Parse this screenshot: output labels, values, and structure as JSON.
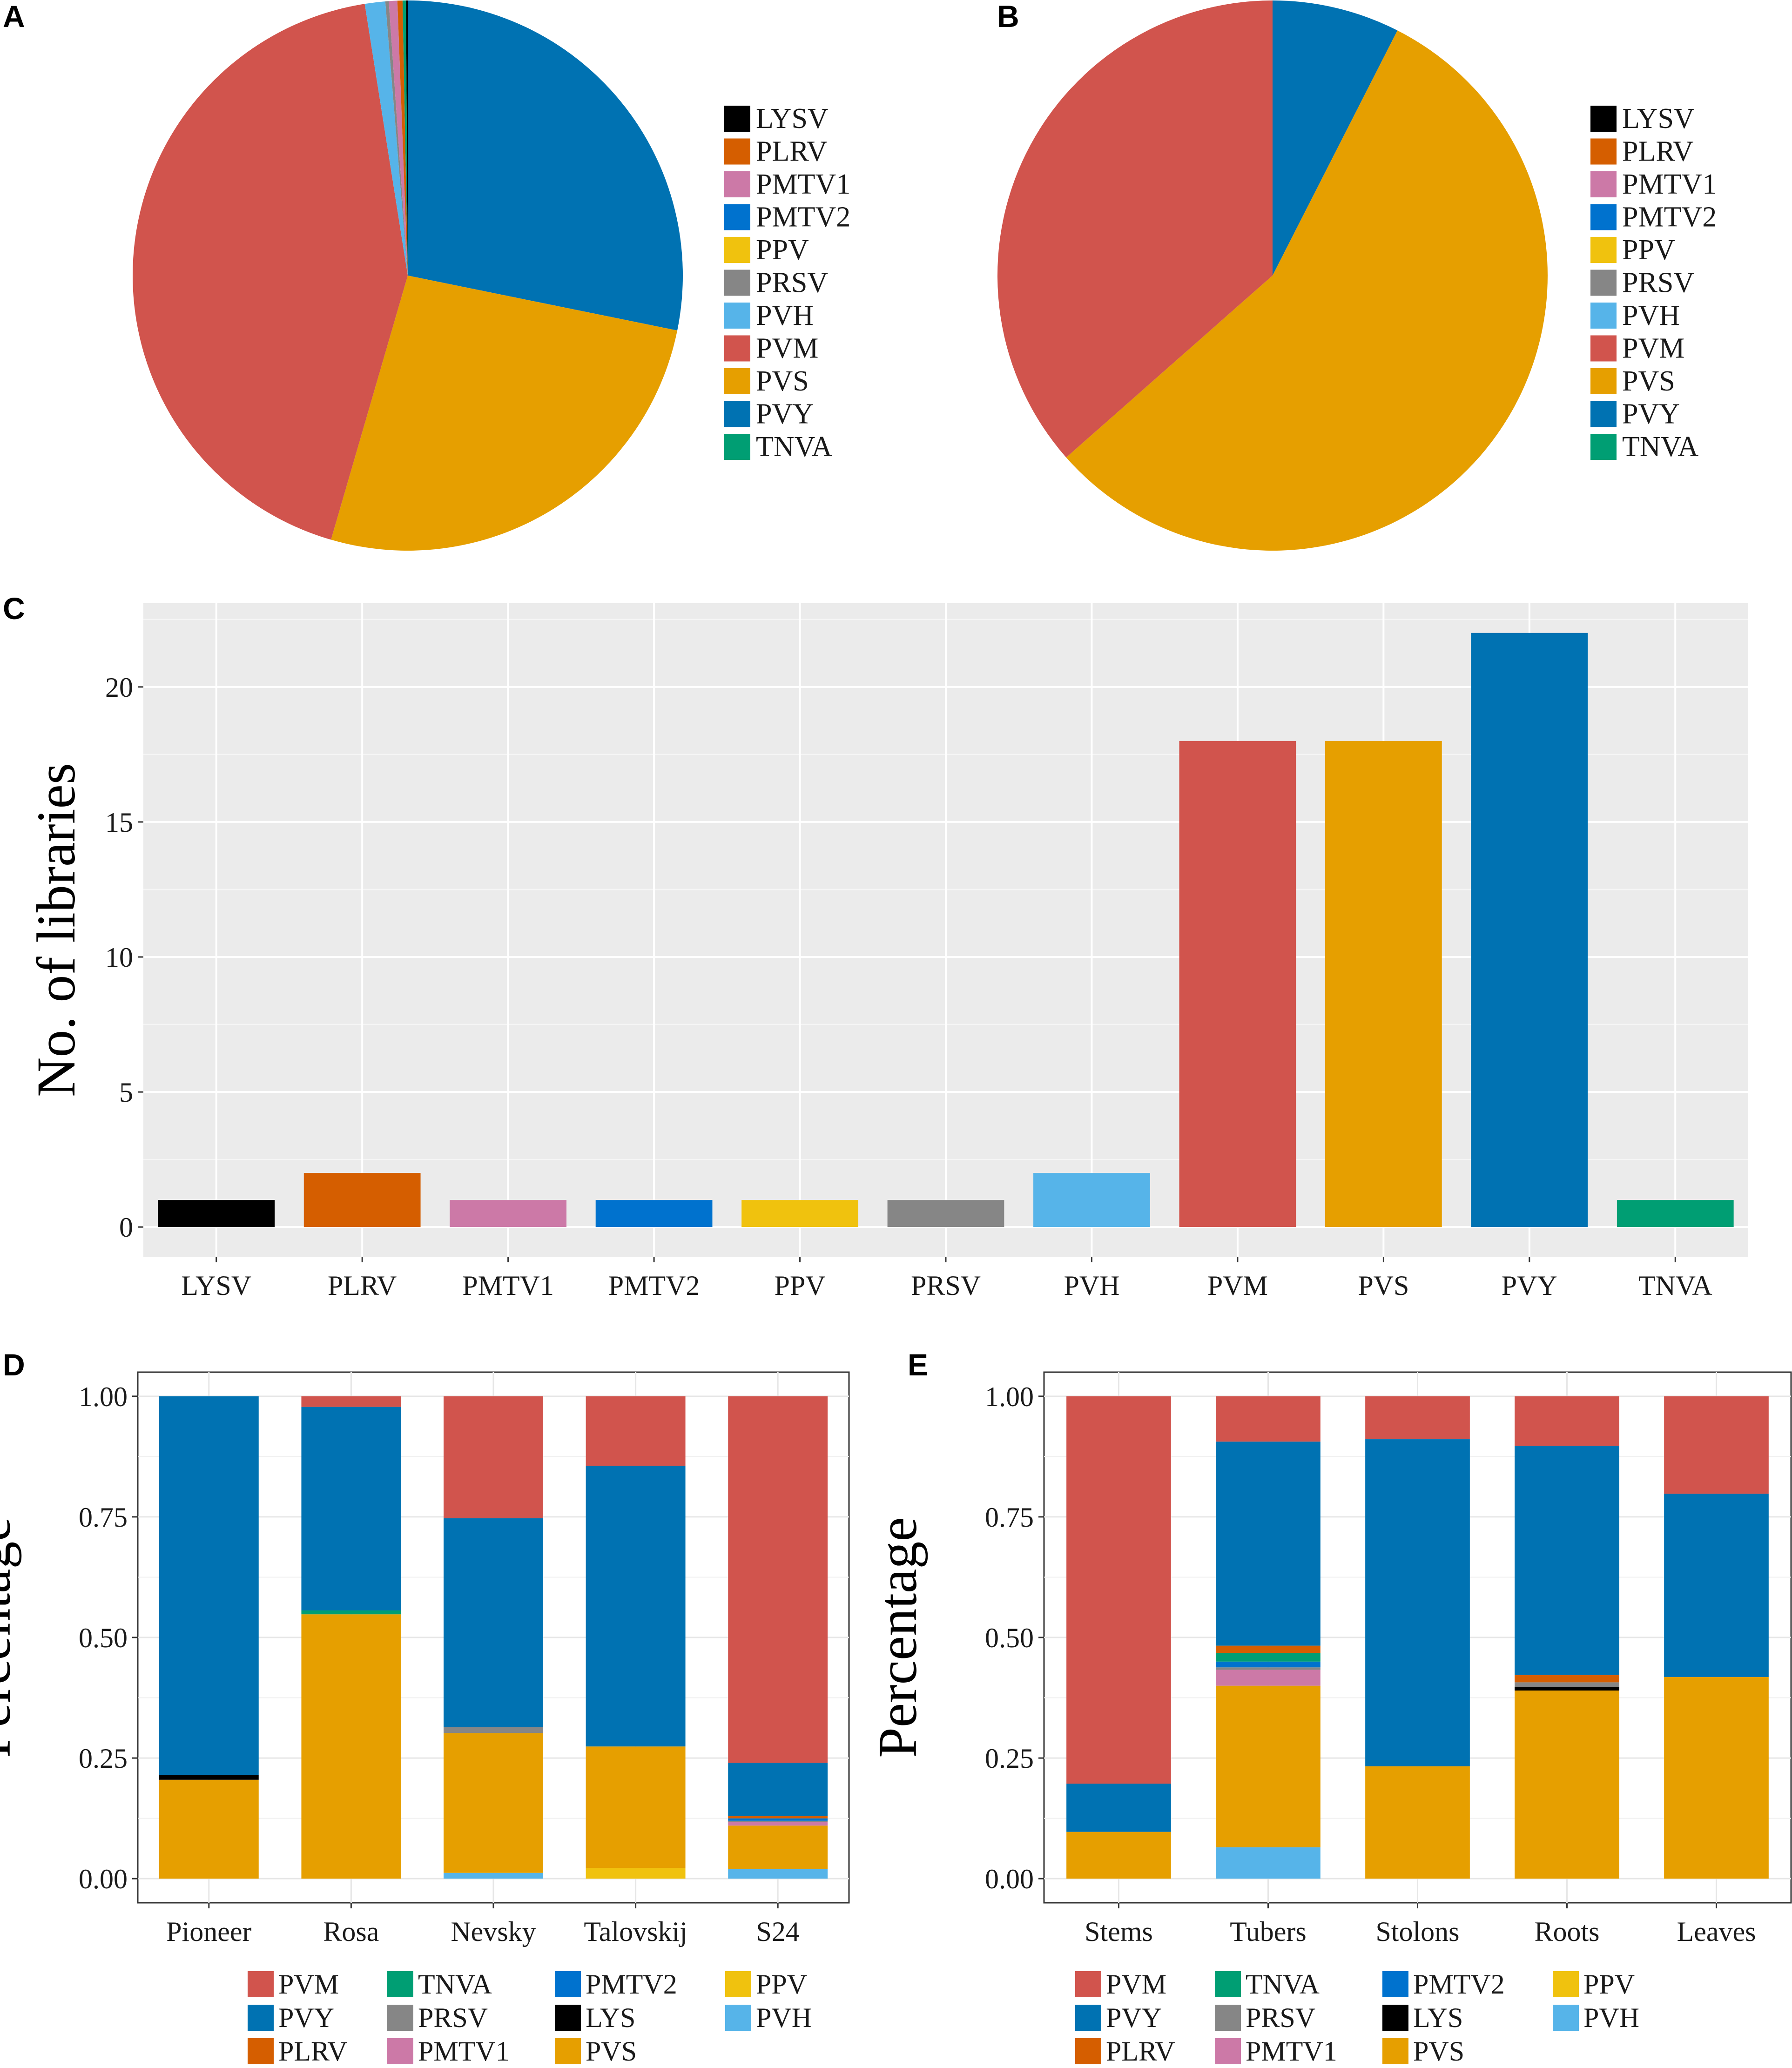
{
  "colors": {
    "LYSV": "#000000",
    "LYS": "#000000",
    "PLRV": "#D55E00",
    "PMTV1": "#CC79A7",
    "PMTV2": "#0072CE",
    "PPV": "#F0C20E",
    "PRSV": "#868686",
    "PVH": "#56B4E9",
    "PVM": "#D1544D",
    "PVS": "#E69F00",
    "PVY": "#0072B2",
    "TNVA": "#009E73"
  },
  "legend_virus_order": [
    "LYSV",
    "PLRV",
    "PMTV1",
    "PMTV2",
    "PPV",
    "PRSV",
    "PVH",
    "PVM",
    "PVS",
    "PVY",
    "TNVA"
  ],
  "chart_data": [
    {
      "panel": "A",
      "type": "pie",
      "slices": [
        {
          "label": "PVY",
          "value": 28.2
        },
        {
          "label": "PVS",
          "value": 26.3
        },
        {
          "label": "PVM",
          "value": 43.0
        },
        {
          "label": "PVH",
          "value": 1.2
        },
        {
          "label": "PRSV",
          "value": 0.2
        },
        {
          "label": "PMTV1",
          "value": 0.5
        },
        {
          "label": "PLRV",
          "value": 0.3
        },
        {
          "label": "TNVA",
          "value": 0.2
        },
        {
          "label": "LYSV",
          "value": 0.1
        }
      ],
      "legend": [
        "LYSV",
        "PLRV",
        "PMTV1",
        "PMTV2",
        "PPV",
        "PRSV",
        "PVH",
        "PVM",
        "PVS",
        "PVY",
        "TNVA"
      ]
    },
    {
      "panel": "B",
      "type": "pie",
      "slices": [
        {
          "label": "PVY",
          "value": 7.5
        },
        {
          "label": "PVS",
          "value": 56.0
        },
        {
          "label": "PVM",
          "value": 36.5
        }
      ],
      "legend": [
        "LYSV",
        "PLRV",
        "PMTV1",
        "PMTV2",
        "PPV",
        "PRSV",
        "PVH",
        "PVM",
        "PVS",
        "PVY",
        "TNVA"
      ]
    },
    {
      "panel": "C",
      "type": "bar",
      "categories": [
        "LYSV",
        "PLRV",
        "PMTV1",
        "PMTV2",
        "PPV",
        "PRSV",
        "PVH",
        "PVM",
        "PVS",
        "PVY",
        "TNVA"
      ],
      "values": [
        1,
        2,
        1,
        1,
        1,
        1,
        2,
        18,
        18,
        22,
        1
      ],
      "ylabel": "No. of libraries",
      "xlabel": "",
      "ylim": [
        -1.1,
        23.1
      ],
      "yticks": [
        0,
        5,
        10,
        15,
        20
      ],
      "ytick_labels": [
        "0",
        "5",
        "10",
        "15",
        "20"
      ]
    },
    {
      "panel": "D",
      "type": "bar",
      "stacked": true,
      "categories": [
        "Pioneer",
        "Rosa",
        "Nevsky",
        "Talovskij",
        "S24"
      ],
      "stack_order": [
        "PVH",
        "PPV",
        "PVS",
        "PMTV1",
        "LYS",
        "PRSV",
        "PMTV2",
        "TNVA",
        "PLRV",
        "PVY",
        "PVM"
      ],
      "series": [
        {
          "name": "PVH",
          "values": [
            0,
            0,
            0.012,
            0,
            0.02
          ]
        },
        {
          "name": "PPV",
          "values": [
            0,
            0,
            0,
            0.022,
            0
          ]
        },
        {
          "name": "PVS",
          "values": [
            0.205,
            0.548,
            0.29,
            0.252,
            0.09
          ]
        },
        {
          "name": "PMTV1",
          "values": [
            0,
            0,
            0,
            0,
            0.007
          ]
        },
        {
          "name": "LYS",
          "values": [
            0.01,
            0,
            0,
            0,
            0
          ]
        },
        {
          "name": "PRSV",
          "values": [
            0,
            0,
            0.012,
            0,
            0.003
          ]
        },
        {
          "name": "PMTV2",
          "values": [
            0,
            0,
            0,
            0,
            0.005
          ]
        },
        {
          "name": "TNVA",
          "values": [
            0,
            0.008,
            0,
            0,
            0
          ]
        },
        {
          "name": "PLRV",
          "values": [
            0,
            0,
            0,
            0,
            0.005
          ]
        },
        {
          "name": "PVY",
          "values": [
            0.785,
            0.422,
            0.433,
            0.582,
            0.11
          ]
        },
        {
          "name": "PVM",
          "values": [
            0,
            0.022,
            0.253,
            0.144,
            0.76
          ]
        }
      ],
      "ylabel": "Percentage",
      "ylim": [
        -0.05,
        1.05
      ],
      "yticks": [
        0,
        0.25,
        0.5,
        0.75,
        1
      ],
      "ytick_labels": [
        "0.00",
        "0.25",
        "0.50",
        "0.75",
        "1.00"
      ]
    },
    {
      "panel": "E",
      "type": "bar",
      "stacked": true,
      "categories": [
        "Stems",
        "Tubers",
        "Stolons",
        "Roots",
        "Leaves"
      ],
      "stack_order": [
        "PVH",
        "PPV",
        "PVS",
        "PMTV1",
        "LYS",
        "PRSV",
        "PMTV2",
        "TNVA",
        "PLRV",
        "PVY",
        "PVM"
      ],
      "series": [
        {
          "name": "PVH",
          "values": [
            0,
            0.065,
            0,
            0,
            0
          ]
        },
        {
          "name": "PPV",
          "values": [
            0,
            0,
            0,
            0,
            0
          ]
        },
        {
          "name": "PVS",
          "values": [
            0.097,
            0.335,
            0.233,
            0.39,
            0.418
          ]
        },
        {
          "name": "PMTV1",
          "values": [
            0,
            0.033,
            0,
            0,
            0
          ]
        },
        {
          "name": "LYS",
          "values": [
            0,
            0,
            0,
            0.007,
            0
          ]
        },
        {
          "name": "PRSV",
          "values": [
            0,
            0.005,
            0,
            0.01,
            0
          ]
        },
        {
          "name": "PMTV2",
          "values": [
            0,
            0.012,
            0,
            0,
            0
          ]
        },
        {
          "name": "TNVA",
          "values": [
            0,
            0.018,
            0,
            0,
            0
          ]
        },
        {
          "name": "PLRV",
          "values": [
            0,
            0.015,
            0,
            0.015,
            0
          ]
        },
        {
          "name": "PVY",
          "values": [
            0.1,
            0.423,
            0.678,
            0.475,
            0.38
          ]
        },
        {
          "name": "PVM",
          "values": [
            0.803,
            0.094,
            0.089,
            0.103,
            0.202
          ]
        }
      ],
      "ylabel": "Percentage",
      "ylim": [
        -0.05,
        1.05
      ],
      "yticks": [
        0,
        0.25,
        0.5,
        0.75,
        1
      ],
      "ytick_labels": [
        "0.00",
        "0.25",
        "0.50",
        "0.75",
        "1.00"
      ]
    }
  ],
  "bottom_legend": [
    [
      "PVM",
      "TNVA",
      "PMTV2",
      "PPV"
    ],
    [
      "PVY",
      "PRSV",
      "LYS",
      "PVH"
    ],
    [
      "PLRV",
      "PMTV1",
      "PVS"
    ]
  ],
  "panel_letters": {
    "A": "A",
    "B": "B",
    "C": "C",
    "D": "D",
    "E": "E"
  }
}
